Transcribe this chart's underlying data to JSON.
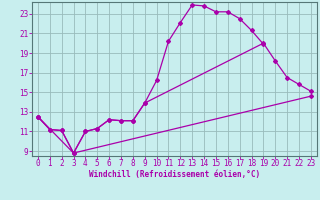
{
  "xlabel": "Windchill (Refroidissement éolien,°C)",
  "background_color": "#c8eeee",
  "line_color": "#aa00aa",
  "grid_color": "#99bbbb",
  "xlim": [
    -0.5,
    23.5
  ],
  "ylim": [
    8.5,
    24.2
  ],
  "xticks": [
    0,
    1,
    2,
    3,
    4,
    5,
    6,
    7,
    8,
    9,
    10,
    11,
    12,
    13,
    14,
    15,
    16,
    17,
    18,
    19,
    20,
    21,
    22,
    23
  ],
  "yticks": [
    9,
    11,
    13,
    15,
    17,
    19,
    21,
    23
  ],
  "line1_x": [
    0,
    1,
    2,
    3,
    4,
    5,
    6,
    7,
    8,
    9,
    10,
    11,
    12,
    13,
    14,
    15,
    16,
    17,
    18,
    19
  ],
  "line1_y": [
    12.5,
    11.2,
    11.1,
    8.8,
    11.0,
    11.3,
    12.2,
    12.1,
    12.1,
    13.9,
    16.2,
    20.2,
    22.1,
    23.9,
    23.8,
    23.2,
    23.2,
    22.5,
    21.3,
    19.9
  ],
  "line2_x": [
    0,
    1,
    2,
    3,
    4,
    5,
    6,
    7,
    8,
    9,
    19,
    20,
    21,
    22,
    23
  ],
  "line2_y": [
    12.5,
    11.2,
    11.1,
    8.8,
    11.0,
    11.3,
    12.2,
    12.1,
    12.1,
    13.9,
    20.0,
    18.2,
    16.5,
    15.8,
    15.1
  ],
  "line3_x": [
    0,
    3,
    23
  ],
  "line3_y": [
    12.5,
    8.8,
    14.6
  ],
  "tick_fontsize": 5.5,
  "xlabel_fontsize": 5.5
}
